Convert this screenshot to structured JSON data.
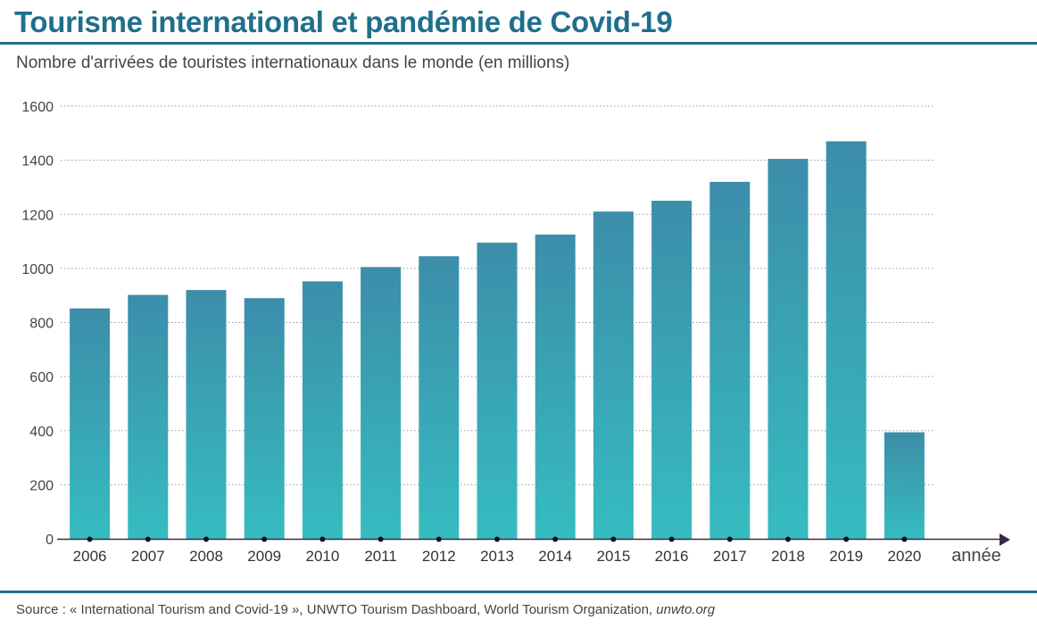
{
  "header": {
    "title": "Tourisme international et pandémie de Covid-19",
    "subtitle": "Nombre d'arrivées de touristes internationaux dans le monde (en millions)"
  },
  "footer": {
    "source_prefix": "Source : « International Tourism and Covid-19 », UNWTO Tourism Dashboard, World Tourism Organization, ",
    "source_link": "unwto.org"
  },
  "colors": {
    "accent": "#1f6f8b",
    "bar_top": "#3c8daa",
    "bar_bottom": "#36bcc0",
    "axis": "#3a2a45"
  },
  "chart_data": {
    "type": "bar",
    "title": "Tourisme international et pandémie de Covid-19",
    "subtitle": "Nombre d'arrivées de touristes internationaux dans le monde (en millions)",
    "xlabel": "année",
    "ylabel": "",
    "categories": [
      "2006",
      "2007",
      "2008",
      "2009",
      "2010",
      "2011",
      "2012",
      "2013",
      "2014",
      "2015",
      "2016",
      "2017",
      "2018",
      "2019",
      "2020"
    ],
    "values": [
      852,
      902,
      920,
      890,
      952,
      1005,
      1045,
      1095,
      1125,
      1210,
      1250,
      1320,
      1405,
      1470,
      394
    ],
    "ylim": [
      0,
      1600
    ],
    "yticks": [
      "0",
      "200",
      "400",
      "600",
      "800",
      "1000",
      "1200",
      "1400",
      "1600"
    ],
    "grid": true,
    "legend": "none"
  }
}
